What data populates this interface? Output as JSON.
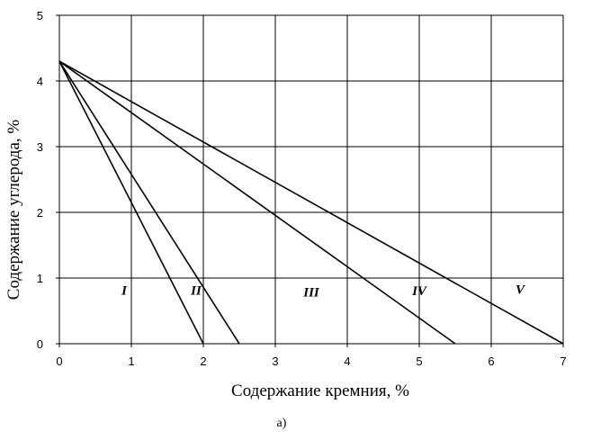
{
  "chart_data": {
    "type": "line",
    "title": "",
    "xlabel": "Содержание кремния, %",
    "ylabel": "Содержание углерода, %",
    "xlim": [
      0,
      7
    ],
    "ylim": [
      0,
      5
    ],
    "x_ticks": [
      "0",
      "1",
      "2",
      "3",
      "4",
      "5",
      "6",
      "7"
    ],
    "y_ticks": [
      "0",
      "1",
      "2",
      "3",
      "4",
      "5"
    ],
    "grid": true,
    "series": [
      {
        "points": [
          [
            0,
            4.3
          ],
          [
            2.0,
            0
          ]
        ]
      },
      {
        "points": [
          [
            0,
            4.3
          ],
          [
            2.5,
            0
          ]
        ]
      },
      {
        "points": [
          [
            0,
            4.3
          ],
          [
            5.5,
            0
          ]
        ]
      },
      {
        "points": [
          [
            0,
            4.3
          ],
          [
            7.0,
            0
          ]
        ]
      }
    ],
    "region_labels": [
      {
        "text": "I",
        "x": 0.9,
        "y": 0.75
      },
      {
        "text": "II",
        "x": 1.9,
        "y": 0.75
      },
      {
        "text": "III",
        "x": 3.5,
        "y": 0.72
      },
      {
        "text": "IV",
        "x": 5.0,
        "y": 0.74
      },
      {
        "text": "V",
        "x": 6.4,
        "y": 0.76
      }
    ],
    "caption": "а)"
  }
}
